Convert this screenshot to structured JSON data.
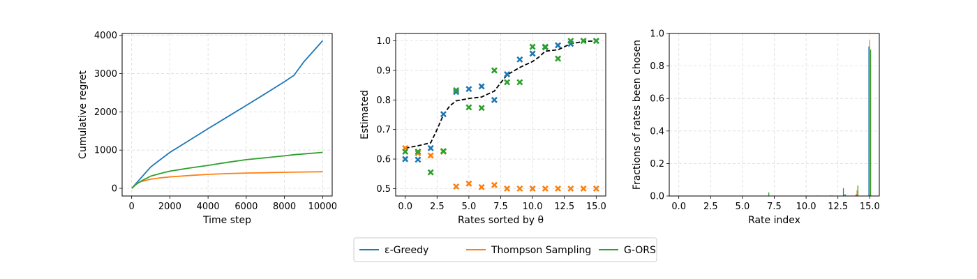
{
  "chart_data": [
    {
      "type": "line",
      "xlabel": "Time step",
      "ylabel": "Cumulative regret",
      "xlim": [
        -500,
        10500
      ],
      "ylim": [
        -200,
        4050
      ],
      "xticks": [
        0,
        2000,
        4000,
        6000,
        8000,
        10000
      ],
      "xtick_labels": [
        "0",
        "2000",
        "4000",
        "6000",
        "8000",
        "10000"
      ],
      "yticks": [
        0,
        1000,
        2000,
        3000,
        4000
      ],
      "ytick_labels": [
        "0",
        "1000",
        "2000",
        "3000",
        "4000"
      ],
      "grid": true,
      "series": [
        {
          "name": "ε-Greedy",
          "color": "#1f77b4",
          "x": [
            0,
            500,
            1000,
            1500,
            2000,
            3000,
            4000,
            5000,
            6000,
            7000,
            8000,
            8500,
            9000,
            10000
          ],
          "y": [
            0,
            280,
            560,
            750,
            940,
            1250,
            1560,
            1865,
            2170,
            2475,
            2790,
            2955,
            3300,
            3860
          ]
        },
        {
          "name": "Thompson Sampling",
          "color": "#ff7f0e",
          "x": [
            0,
            250,
            500,
            1000,
            1500,
            2000,
            3000,
            4000,
            5000,
            6000,
            7000,
            8000,
            9000,
            10000
          ],
          "y": [
            0,
            120,
            180,
            240,
            275,
            300,
            335,
            365,
            385,
            400,
            410,
            420,
            428,
            435
          ]
        },
        {
          "name": "G-ORS",
          "color": "#2ca02c",
          "x": [
            0,
            250,
            500,
            1000,
            1500,
            2000,
            2500,
            3000,
            4000,
            5000,
            6000,
            7000,
            8000,
            8500,
            9000,
            10000
          ],
          "y": [
            0,
            110,
            190,
            320,
            390,
            450,
            490,
            530,
            600,
            680,
            750,
            800,
            850,
            880,
            900,
            940
          ]
        }
      ]
    },
    {
      "type": "scatter",
      "xlabel": "Rates sorted by θ",
      "ylabel": "Estimated",
      "xlim": [
        -0.75,
        15.75
      ],
      "ylim": [
        0.475,
        1.025
      ],
      "xticks": [
        0,
        2.5,
        5,
        7.5,
        10,
        12.5,
        15
      ],
      "xtick_labels": [
        "0.0",
        "2.5",
        "5.0",
        "7.5",
        "10.0",
        "12.5",
        "15.0"
      ],
      "yticks": [
        0.5,
        0.6,
        0.7,
        0.8,
        0.9,
        1.0
      ],
      "ytick_labels": [
        "0.5",
        "0.6",
        "0.7",
        "0.8",
        "0.9",
        "1.0"
      ],
      "grid": true,
      "reference_line": {
        "style": "dashed",
        "color": "#000000",
        "x": [
          0,
          1,
          2,
          2.5,
          3,
          3.5,
          4,
          5,
          6,
          7,
          7.5,
          8,
          9,
          10,
          10.5,
          11,
          12,
          13,
          14,
          15
        ],
        "y": [
          0.637,
          0.645,
          0.655,
          0.7,
          0.75,
          0.78,
          0.797,
          0.805,
          0.81,
          0.83,
          0.858,
          0.885,
          0.91,
          0.93,
          0.945,
          0.965,
          0.97,
          0.99,
          0.998,
          1.0
        ]
      },
      "series": [
        {
          "name": "ε-Greedy",
          "color": "#1f77b4",
          "x": [
            0,
            1,
            2,
            3,
            4,
            5,
            6,
            7,
            8,
            9,
            10,
            11,
            12,
            13,
            14,
            15
          ],
          "y": [
            0.6,
            0.598,
            0.637,
            0.752,
            0.827,
            0.837,
            0.846,
            0.8,
            0.887,
            0.937,
            0.957,
            0.978,
            0.985,
            0.99,
            1.0,
            1.0
          ]
        },
        {
          "name": "Thompson Sampling",
          "color": "#ff7f0e",
          "x": [
            0,
            1,
            2,
            3,
            4,
            5,
            6,
            7,
            8,
            9,
            10,
            11,
            12,
            13,
            14,
            15
          ],
          "y": [
            0.637,
            0.62,
            0.612,
            0.625,
            0.507,
            0.517,
            0.505,
            0.512,
            0.5,
            0.5,
            0.5,
            0.5,
            0.5,
            0.5,
            0.5,
            0.5
          ]
        },
        {
          "name": "G-ORS",
          "color": "#2ca02c",
          "x": [
            0,
            1,
            2,
            3,
            4,
            5,
            6,
            7,
            8,
            9,
            10,
            11,
            12,
            13,
            14,
            15
          ],
          "y": [
            0.625,
            0.625,
            0.555,
            0.627,
            0.833,
            0.775,
            0.773,
            0.9,
            0.86,
            0.86,
            0.98,
            0.98,
            0.94,
            1.0,
            1.0,
            1.0
          ]
        }
      ]
    },
    {
      "type": "bar",
      "xlabel": "Rate index",
      "ylabel": "Fractions of rates been chosen",
      "xlim": [
        -0.75,
        15.75
      ],
      "ylim": [
        0,
        1.0
      ],
      "xticks": [
        0,
        2.5,
        5,
        7.5,
        10,
        12.5,
        15
      ],
      "xtick_labels": [
        "0.0",
        "2.5",
        "5.0",
        "7.5",
        "10.0",
        "12.5",
        "15.0"
      ],
      "yticks": [
        0.0,
        0.2,
        0.4,
        0.6,
        0.8,
        1.0
      ],
      "ytick_labels": [
        "0.0",
        "0.2",
        "0.4",
        "0.6",
        "0.8",
        "1.0"
      ],
      "grid": true,
      "categories": [
        0,
        1,
        2,
        3,
        4,
        5,
        6,
        7,
        8,
        9,
        10,
        11,
        12,
        13,
        14,
        15
      ],
      "series": [
        {
          "name": "ε-Greedy",
          "color": "#1f77b4",
          "values": [
            0.002,
            0.002,
            0.002,
            0.002,
            0.002,
            0.002,
            0.002,
            0.002,
            0.002,
            0.002,
            0.002,
            0.003,
            0.004,
            0.048,
            0.01,
            0.92
          ]
        },
        {
          "name": "Thompson Sampling",
          "color": "#ff7f0e",
          "values": [
            0,
            0,
            0,
            0,
            0,
            0,
            0,
            0,
            0,
            0,
            0,
            0,
            0,
            0.005,
            0.035,
            0.96
          ]
        },
        {
          "name": "G-ORS",
          "color": "#2ca02c",
          "values": [
            0.001,
            0.001,
            0.001,
            0.001,
            0.001,
            0.001,
            0.002,
            0.022,
            0.002,
            0.002,
            0.002,
            0.002,
            0.003,
            0.012,
            0.065,
            0.9
          ]
        }
      ]
    }
  ],
  "legend": {
    "placement": "bottom-center",
    "items": [
      {
        "label": "ε-Greedy",
        "color": "#1f77b4"
      },
      {
        "label": "Thompson Sampling",
        "color": "#ff7f0e"
      },
      {
        "label": "G-ORS",
        "color": "#2ca02c"
      }
    ]
  }
}
